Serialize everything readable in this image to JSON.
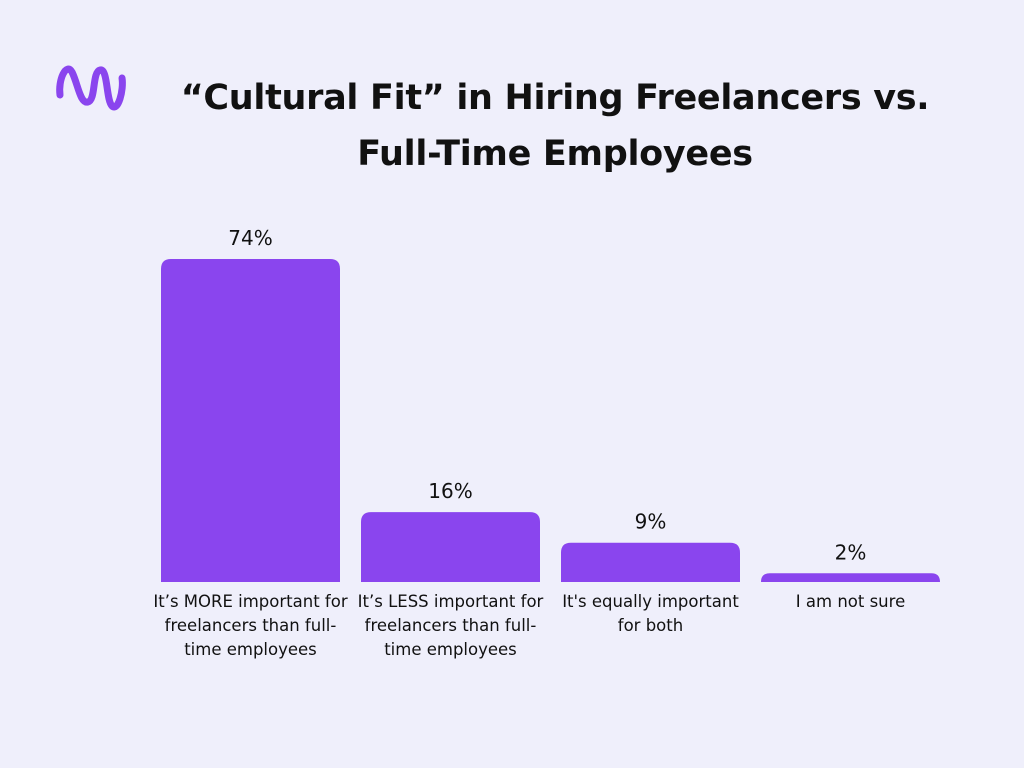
{
  "chart_data": {
    "type": "bar",
    "title": "“Cultural Fit” in Hiring Freelancers vs. Full-Time Employees",
    "categories": [
      "It’s MORE important for freelancers than full-time employees",
      "It’s LESS important for freelancers than full-time employees",
      "It's equally important for both",
      "I am not sure"
    ],
    "values": [
      74,
      16,
      9,
      2
    ],
    "value_labels": [
      "74%",
      "16%",
      "9%",
      "2%"
    ],
    "color": "#8a45ee"
  }
}
